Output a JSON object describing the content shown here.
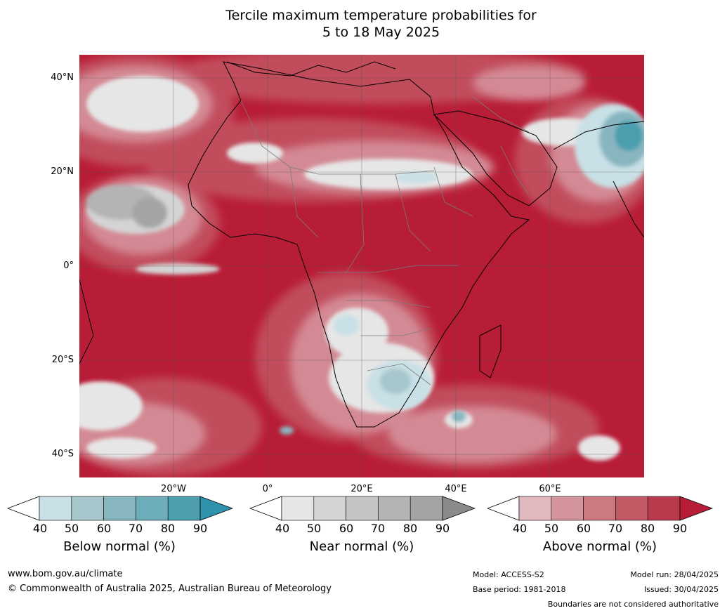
{
  "title": {
    "line1": "Tercile maximum temperature probabilities for",
    "line2": "5 to 18 May 2025"
  },
  "map": {
    "lat_labels": [
      "40°N",
      "20°N",
      "0°",
      "20°S",
      "40°S"
    ],
    "lon_labels": [
      "20°W",
      "0°",
      "20°E",
      "40°E",
      "60°E"
    ],
    "colors": {
      "above_dark": "#b81d37",
      "above_mid": "#c2505f",
      "above_light": "#d48a94",
      "above_pale": "#e1b8bd",
      "near_white": "#e6e6e6",
      "near_grey": "#b4b4b4",
      "below_light": "#c8e0e6",
      "below_mid": "#6eaebb"
    }
  },
  "colorbars": [
    {
      "name": "below",
      "title": "Below normal (%)",
      "ticks": [
        "40",
        "50",
        "60",
        "70",
        "80",
        "90"
      ],
      "colors": [
        "#c8e0e6",
        "#a6c6cc",
        "#88b6c0",
        "#6eaebb",
        "#4c9eae",
        "#2f93ab"
      ]
    },
    {
      "name": "near",
      "title": "Near normal (%)",
      "ticks": [
        "40",
        "50",
        "60",
        "70",
        "80",
        "90"
      ],
      "colors": [
        "#e6e6e6",
        "#d4d4d4",
        "#c4c4c4",
        "#b4b4b4",
        "#a4a4a4",
        "#8a8a8a"
      ]
    },
    {
      "name": "above",
      "title": "Above normal (%)",
      "ticks": [
        "40",
        "50",
        "60",
        "70",
        "80",
        "90"
      ],
      "colors": [
        "#e1b8bd",
        "#d4949c",
        "#cc7a82",
        "#c25a66",
        "#b83a4c",
        "#b81d37"
      ]
    }
  ],
  "footer": {
    "website": "www.bom.gov.au/climate",
    "copyright": "© Commonwealth of Australia 2025, Australian Bureau of Meteorology",
    "model": "Model: ACCESS-S2",
    "base_period": "Base period: 1981-2018",
    "model_run": "Model run: 28/04/2025",
    "issued": "Issued: 30/04/2025",
    "disclaimer": "Boundaries are not considered authoritative"
  }
}
